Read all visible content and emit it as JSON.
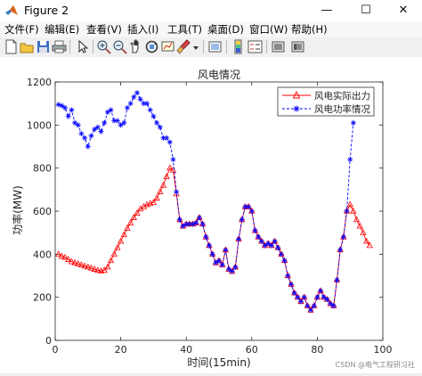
{
  "window": {
    "title": "Figure 2",
    "minimize_label": "—",
    "maximize_label": "☐",
    "close_label": "✕"
  },
  "menu": [
    "文件(F)",
    "编辑(E)",
    "查看(V)",
    "插入(I)",
    "工具(T)",
    "桌面(D)",
    "窗口(W)",
    "帮助(H)"
  ],
  "toolbar_icons": [
    "new-figure-icon",
    "open-file-icon",
    "save-icon",
    "print-icon",
    "edit-plot-icon",
    "zoom-in-icon",
    "zoom-out-icon",
    "pan-icon",
    "rotate-3d-icon",
    "data-cursor-icon",
    "brush-icon",
    "link-plot-icon",
    "insert-colorbar-icon",
    "insert-legend-icon",
    "hide-plot-tools-icon",
    "show-plot-tools-icon"
  ],
  "colors": {
    "series1": "#ff0000",
    "series2": "#0000ff",
    "accent": "#0072bd"
  },
  "chart_data": {
    "type": "line",
    "title": "风电情况",
    "xlabel": "时间(15min)",
    "ylabel": "功率(MW)",
    "xlim": [
      0,
      100
    ],
    "ylim": [
      0,
      1200
    ],
    "xticks": [
      0,
      20,
      40,
      60,
      80,
      100
    ],
    "yticks": [
      0,
      200,
      400,
      600,
      800,
      1000,
      1200
    ],
    "grid": false,
    "legend_position": "top-right",
    "series": [
      {
        "name": "风电实际出力",
        "color": "#ff0000",
        "marker": "triangle",
        "line": "solid",
        "x": [
          1,
          2,
          3,
          4,
          5,
          6,
          7,
          8,
          9,
          10,
          11,
          12,
          13,
          14,
          15,
          16,
          17,
          18,
          19,
          20,
          21,
          22,
          23,
          24,
          25,
          26,
          27,
          28,
          29,
          30,
          31,
          32,
          33,
          34,
          35,
          36,
          37,
          38,
          39,
          40,
          41,
          42,
          43,
          44,
          45,
          46,
          47,
          48,
          49,
          50,
          51,
          52,
          53,
          54,
          55,
          56,
          57,
          58,
          59,
          60,
          61,
          62,
          63,
          64,
          65,
          66,
          67,
          68,
          69,
          70,
          71,
          72,
          73,
          74,
          75,
          76,
          77,
          78,
          79,
          80,
          81,
          82,
          83,
          84,
          85,
          86,
          87,
          88,
          89,
          90,
          91,
          92,
          93,
          94,
          95,
          96
        ],
        "y": [
          400,
          390,
          385,
          375,
          365,
          360,
          355,
          350,
          345,
          340,
          335,
          330,
          325,
          322,
          325,
          340,
          370,
          400,
          430,
          460,
          490,
          520,
          545,
          570,
          590,
          610,
          620,
          630,
          635,
          640,
          660,
          690,
          720,
          760,
          800,
          790,
          680,
          560,
          530,
          540,
          540,
          540,
          545,
          570,
          540,
          480,
          440,
          400,
          360,
          370,
          350,
          420,
          330,
          320,
          340,
          470,
          560,
          620,
          620,
          600,
          510,
          480,
          460,
          440,
          450,
          440,
          460,
          430,
          400,
          370,
          300,
          260,
          220,
          200,
          180,
          200,
          160,
          140,
          160,
          200,
          230,
          200,
          190,
          170,
          160,
          280,
          420,
          480,
          600,
          630,
          600,
          560,
          530,
          500,
          460,
          440
        ]
      },
      {
        "name": "风电功率情况",
        "color": "#0000ff",
        "marker": "star",
        "line": "dashed",
        "x": [
          1,
          2,
          3,
          4,
          5,
          6,
          7,
          8,
          9,
          10,
          11,
          12,
          13,
          14,
          15,
          16,
          17,
          18,
          19,
          20,
          21,
          22,
          23,
          24,
          25,
          26,
          27,
          28,
          29,
          30,
          31,
          32,
          33,
          34,
          35,
          36,
          37,
          38,
          39,
          40,
          41,
          42,
          43,
          44,
          45,
          46,
          47,
          48,
          49,
          50,
          51,
          52,
          53,
          54,
          55,
          56,
          57,
          58,
          59,
          60,
          61,
          62,
          63,
          64,
          65,
          66,
          67,
          68,
          69,
          70,
          71,
          72,
          73,
          74,
          75,
          76,
          77,
          78,
          79,
          80,
          81,
          82,
          83,
          84,
          85,
          86,
          87,
          88,
          89,
          90,
          91
        ],
        "y": [
          1095,
          1090,
          1080,
          1040,
          1070,
          1010,
          1000,
          960,
          940,
          900,
          950,
          980,
          990,
          970,
          1010,
          1060,
          1070,
          1020,
          1020,
          1000,
          1010,
          1080,
          1100,
          1130,
          1150,
          1120,
          1100,
          1100,
          1070,
          1040,
          1010,
          990,
          940,
          940,
          920,
          840,
          690,
          560,
          530,
          540,
          540,
          540,
          545,
          570,
          540,
          480,
          440,
          400,
          360,
          370,
          350,
          420,
          330,
          320,
          340,
          470,
          560,
          620,
          620,
          600,
          510,
          480,
          460,
          440,
          450,
          440,
          460,
          430,
          400,
          370,
          300,
          260,
          220,
          200,
          180,
          200,
          160,
          140,
          160,
          200,
          230,
          200,
          190,
          170,
          160,
          280,
          420,
          480,
          600,
          840,
          1010
        ]
      }
    ]
  },
  "watermark": "CSDN @电气工程研习社"
}
